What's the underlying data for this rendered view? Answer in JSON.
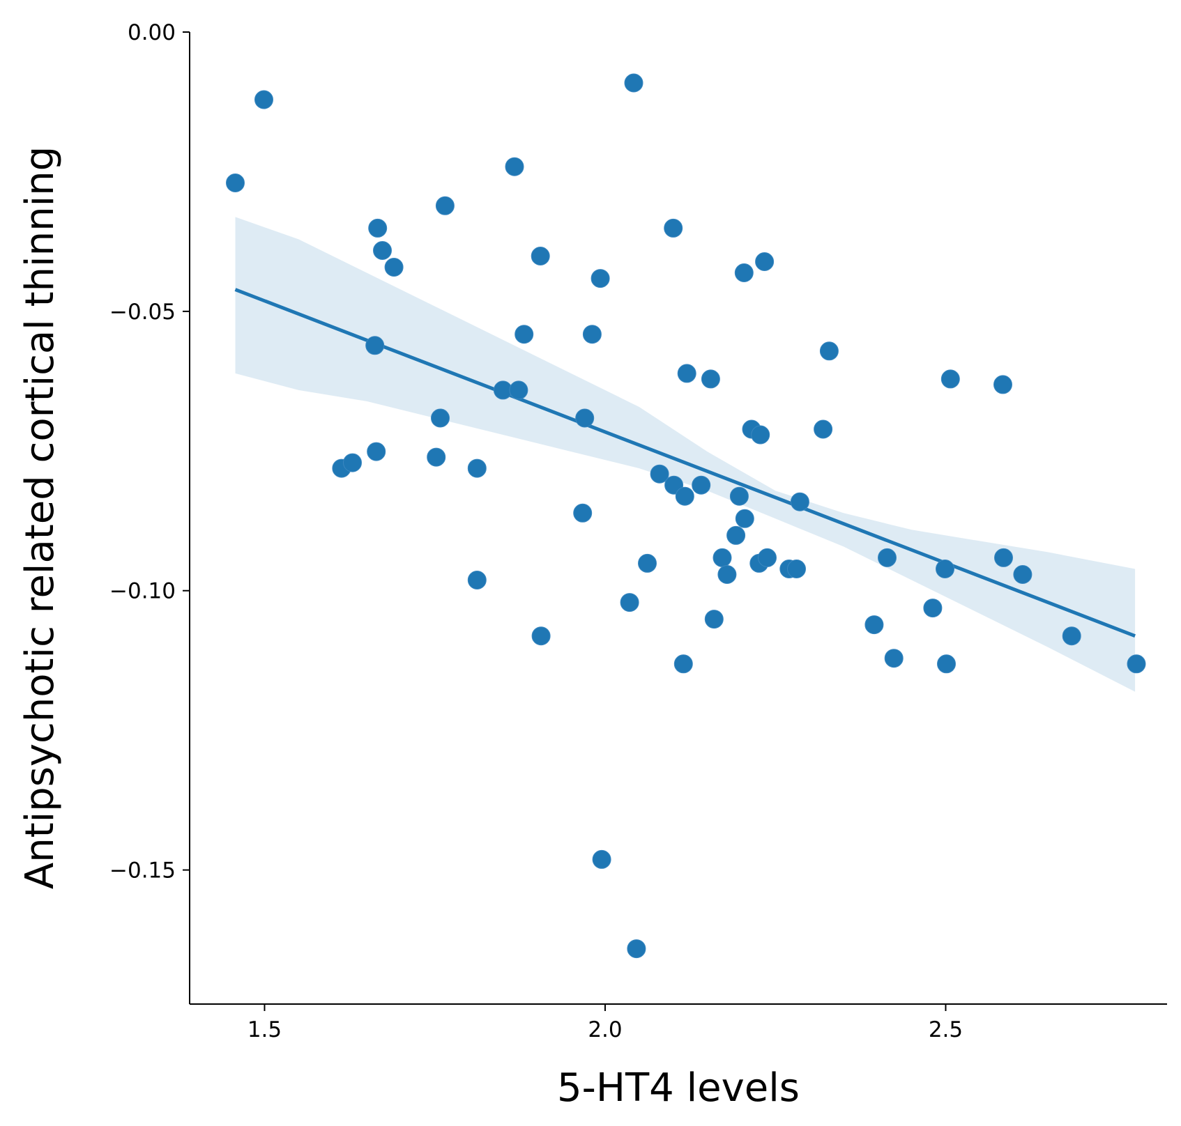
{
  "chart_data": {
    "type": "scatter",
    "xlabel": "5-HT4 levels",
    "ylabel": "Antipsychotic related cortical thinning",
    "xlim": [
      1.39,
      2.825
    ],
    "ylim": [
      -0.174,
      0.0
    ],
    "xticks": [
      1.5,
      2.0,
      2.5
    ],
    "xtick_labels": [
      "1.5",
      "2.0",
      "2.5"
    ],
    "yticks": [
      0.0,
      -0.05,
      -0.1,
      -0.15
    ],
    "ytick_labels": [
      "0.00",
      "−0.05",
      "−0.10",
      "−0.15"
    ],
    "grid": false,
    "colors": {
      "points": "#1f77b4",
      "line": "#1f77b4",
      "band": "#1f77b4"
    },
    "points": {
      "x": [
        1.457,
        1.499,
        1.867,
        2.042,
        1.765,
        1.666,
        1.673,
        1.69,
        1.905,
        1.993,
        2.1,
        2.204,
        2.234,
        1.662,
        1.881,
        1.981,
        2.329,
        2.12,
        2.155,
        2.507,
        2.584,
        1.85,
        1.873,
        1.758,
        1.97,
        2.215,
        2.228,
        2.32,
        1.613,
        1.629,
        1.664,
        1.752,
        1.812,
        2.08,
        2.101,
        2.117,
        2.141,
        2.197,
        2.205,
        2.286,
        1.967,
        2.192,
        2.062,
        2.172,
        2.179,
        2.226,
        2.238,
        2.27,
        2.281,
        2.414,
        2.499,
        2.585,
        2.613,
        1.812,
        2.036,
        2.16,
        2.481,
        2.395,
        2.424,
        2.501,
        2.685,
        2.78,
        1.906,
        2.115,
        1.995,
        2.046
      ],
      "y": [
        -0.027,
        -0.0121,
        -0.0241,
        -0.0091,
        -0.0311,
        -0.0351,
        -0.0391,
        -0.0421,
        -0.0401,
        -0.0441,
        -0.0351,
        -0.0431,
        -0.0411,
        -0.0561,
        -0.0541,
        -0.0541,
        -0.0571,
        -0.0611,
        -0.0621,
        -0.0621,
        -0.0631,
        -0.0641,
        -0.0641,
        -0.0691,
        -0.0691,
        -0.0711,
        -0.0721,
        -0.0711,
        -0.0781,
        -0.0771,
        -0.0751,
        -0.0761,
        -0.0781,
        -0.0791,
        -0.0811,
        -0.0831,
        -0.0811,
        -0.0831,
        -0.0871,
        -0.0841,
        -0.0861,
        -0.0901,
        -0.0951,
        -0.0941,
        -0.0971,
        -0.0951,
        -0.0941,
        -0.0961,
        -0.0961,
        -0.0941,
        -0.0961,
        -0.0941,
        -0.0971,
        -0.0981,
        -0.1021,
        -0.1051,
        -0.1031,
        -0.1061,
        -0.1121,
        -0.1131,
        -0.1081,
        -0.1131,
        -0.1081,
        -0.1131,
        -0.1481,
        -0.1641
      ]
    },
    "regression": {
      "x": [
        1.457,
        2.778
      ],
      "y": [
        -0.0461,
        -0.1081
      ]
    },
    "confidence_band": {
      "x": [
        1.457,
        1.55,
        1.65,
        1.75,
        1.85,
        1.95,
        2.05,
        2.15,
        2.25,
        2.35,
        2.45,
        2.55,
        2.65,
        2.778
      ],
      "upper": [
        -0.0331,
        -0.0371,
        -0.0431,
        -0.0491,
        -0.0551,
        -0.0611,
        -0.0671,
        -0.0751,
        -0.0821,
        -0.0861,
        -0.0891,
        -0.0911,
        -0.0931,
        -0.0961
      ],
      "lower": [
        -0.0611,
        -0.0641,
        -0.0661,
        -0.0691,
        -0.0721,
        -0.0751,
        -0.0781,
        -0.0821,
        -0.0871,
        -0.0921,
        -0.0981,
        -0.1041,
        -0.1101,
        -0.1181
      ]
    }
  }
}
